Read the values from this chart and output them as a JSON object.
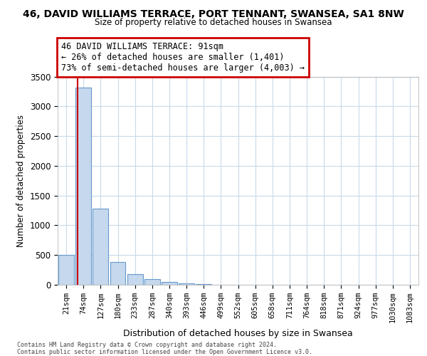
{
  "title1": "46, DAVID WILLIAMS TERRACE, PORT TENNANT, SWANSEA, SA1 8NW",
  "title2": "Size of property relative to detached houses in Swansea",
  "xlabel": "Distribution of detached houses by size in Swansea",
  "ylabel": "Number of detached properties",
  "categories": [
    "21sqm",
    "74sqm",
    "127sqm",
    "180sqm",
    "233sqm",
    "287sqm",
    "340sqm",
    "393sqm",
    "446sqm",
    "499sqm",
    "552sqm",
    "605sqm",
    "658sqm",
    "711sqm",
    "764sqm",
    "818sqm",
    "871sqm",
    "924sqm",
    "977sqm",
    "1030sqm",
    "1083sqm"
  ],
  "values": [
    500,
    3320,
    1280,
    380,
    175,
    95,
    45,
    20,
    10,
    5,
    0,
    0,
    0,
    0,
    0,
    0,
    0,
    0,
    0,
    0,
    0
  ],
  "bar_color": "#c5d8ed",
  "bar_edge_color": "#6699cc",
  "red_line_x": 0.68,
  "annotation_line1": "46 DAVID WILLIAMS TERRACE: 91sqm",
  "annotation_line2": "← 26% of detached houses are smaller (1,401)",
  "annotation_line3": "73% of semi-detached houses are larger (4,003) →",
  "annotation_box_color": "#cc0000",
  "ylim": [
    0,
    3500
  ],
  "yticks": [
    0,
    500,
    1000,
    1500,
    2000,
    2500,
    3000,
    3500
  ],
  "footer": "Contains HM Land Registry data © Crown copyright and database right 2024.\nContains public sector information licensed under the Open Government Licence v3.0.",
  "background_color": "#ffffff",
  "grid_color": "#c8daea"
}
